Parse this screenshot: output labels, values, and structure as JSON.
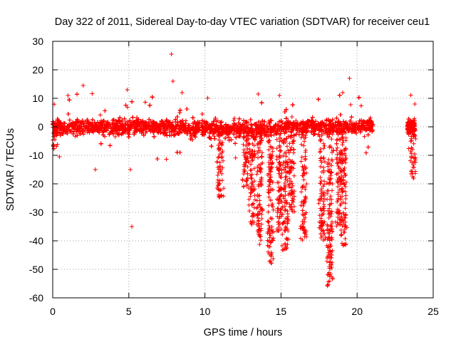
{
  "chart_data": {
    "type": "scatter",
    "title": "Day 322 of 2011, Sidereal Day-to-day VTEC variation (SDTVAR) for receiver ceu1",
    "xlabel": "GPS time / hours",
    "ylabel": "SDTVAR / TECUs",
    "xlim": [
      0,
      25
    ],
    "ylim": [
      -60,
      30
    ],
    "xticks": [
      0,
      5,
      10,
      15,
      20,
      25
    ],
    "yticks": [
      -60,
      -50,
      -40,
      -30,
      -20,
      -10,
      0,
      10,
      20,
      30
    ],
    "grid": true,
    "marker": "+",
    "color": "#ff0000",
    "series": [
      {
        "name": "SDTVAR",
        "band": {
          "x_ranges": [
            [
              0,
              21.05
            ],
            [
              23.3,
              23.8
            ]
          ],
          "center": 0,
          "typical_spread": 4,
          "noise_range": [
            -12,
            12
          ]
        },
        "dips": [
          {
            "x": 0.1,
            "min": -8
          },
          {
            "x": 11.0,
            "min": -25
          },
          {
            "x": 12.7,
            "min": -22
          },
          {
            "x": 13.1,
            "min": -35
          },
          {
            "x": 13.6,
            "min": -42
          },
          {
            "x": 14.3,
            "min": -48
          },
          {
            "x": 14.9,
            "min": -38
          },
          {
            "x": 15.3,
            "min": -44
          },
          {
            "x": 15.7,
            "min": -30
          },
          {
            "x": 16.5,
            "min": -40
          },
          {
            "x": 17.7,
            "min": -40
          },
          {
            "x": 18.2,
            "min": -56
          },
          {
            "x": 18.8,
            "min": -35
          },
          {
            "x": 19.1,
            "min": -42
          },
          {
            "x": 23.7,
            "min": -18
          }
        ],
        "outliers": [
          {
            "x": 7.8,
            "y": 25.5
          },
          {
            "x": 7.9,
            "y": 16
          },
          {
            "x": 19.5,
            "y": 17
          },
          {
            "x": 5.2,
            "y": -35
          },
          {
            "x": 5.1,
            "y": -15
          },
          {
            "x": 2.8,
            "y": -15
          },
          {
            "x": 23.7,
            "y": -18
          },
          {
            "x": 1.0,
            "y": 11
          },
          {
            "x": 2.0,
            "y": 14.5
          },
          {
            "x": 4.9,
            "y": 13
          },
          {
            "x": 8.5,
            "y": 12
          },
          {
            "x": 13.5,
            "y": 11.5
          },
          {
            "x": 14.9,
            "y": 11
          }
        ]
      }
    ]
  }
}
